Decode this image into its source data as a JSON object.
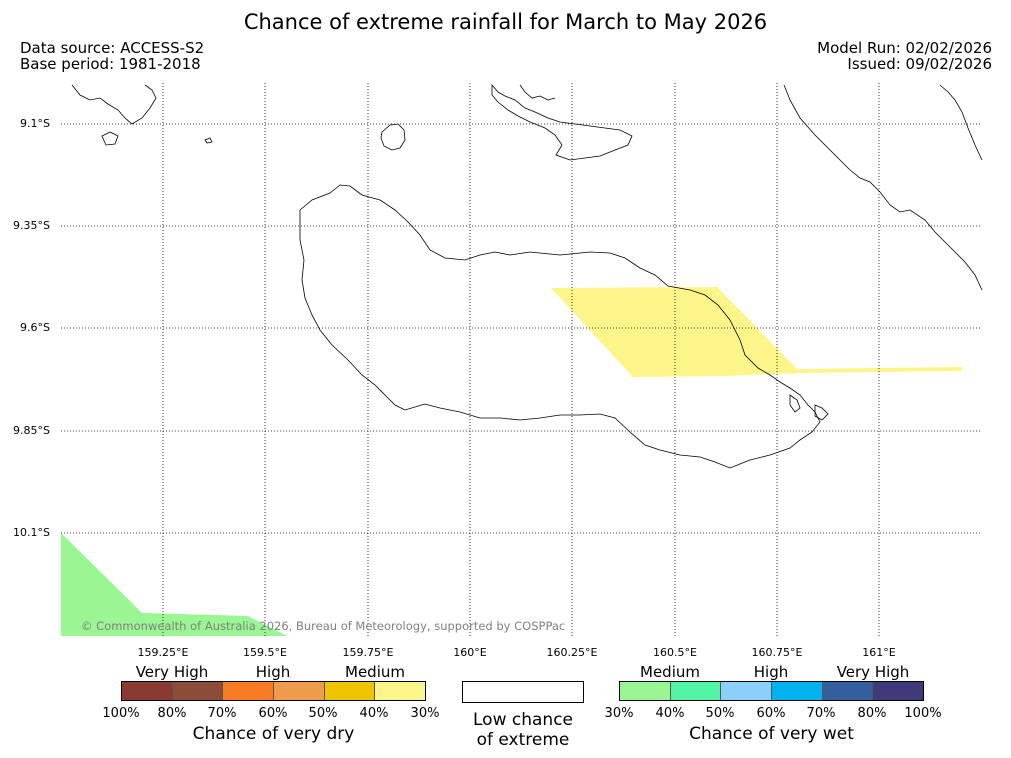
{
  "title": "Chance of extreme rainfall for March to May 2026",
  "data_source": "Data source: ACCESS-S2",
  "base_period": "Base period: 1981-2018",
  "model_run": "Model Run: 02/02/2026",
  "issued": "Issued: 09/02/2026",
  "copyright": "© Commonwealth of Australia 2026, Bureau of Meteorology, supported by COSPPac",
  "latitude_labels": [
    "9.1°S",
    "9.35°S",
    "9.6°S",
    "9.85°S",
    "10.1°S"
  ],
  "longitude_labels": [
    "159.25°E",
    "159.5°E",
    "159.75°E",
    "160°E",
    "160.25°E",
    "160.5°E",
    "160.75°E",
    "161°E"
  ],
  "dry_legend": {
    "categories": [
      "Very High",
      "High",
      "Medium"
    ],
    "ticks": [
      "100%",
      "80%",
      "70%",
      "60%",
      "50%",
      "40%",
      "30%"
    ],
    "colors": [
      "#8b3a32",
      "#8b4c3a",
      "#f87c24",
      "#ef9b4c",
      "#efc500",
      "#fcf68a"
    ],
    "title": "Chance of very dry"
  },
  "neutral_legend": {
    "label_line1": "Low chance",
    "label_line2": "of extreme"
  },
  "wet_legend": {
    "categories": [
      "Medium",
      "High",
      "Very High"
    ],
    "ticks": [
      "30%",
      "40%",
      "50%",
      "60%",
      "70%",
      "80%",
      "100%"
    ],
    "colors": [
      "#9af593",
      "#52f5a5",
      "#8ad0fb",
      "#00b2ee",
      "#345e9e",
      "#3f3a7a"
    ],
    "title": "Chance of very wet"
  },
  "regions": [
    {
      "name": "medium-dry-region",
      "category": "Medium dry (30-40%)",
      "color": "#fcf68a"
    },
    {
      "name": "medium-wet-region",
      "category": "Medium wet (30-40%)",
      "color": "#9af593"
    }
  ]
}
